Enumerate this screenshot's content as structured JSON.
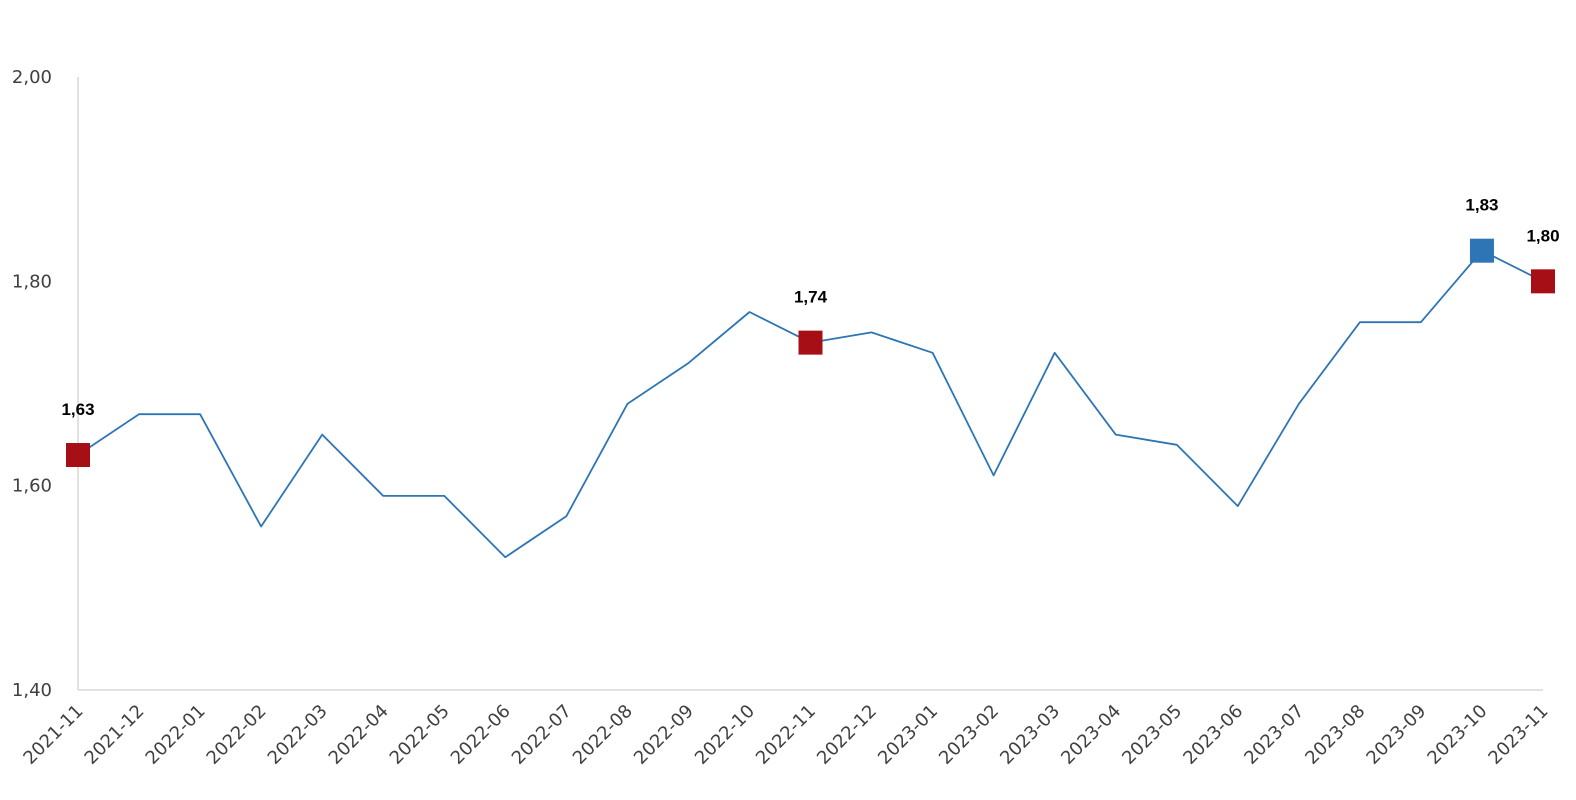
{
  "chart_data": {
    "type": "line",
    "categories": [
      "2021-11",
      "2021-12",
      "2022-01",
      "2022-02",
      "2022-03",
      "2022-04",
      "2022-05",
      "2022-06",
      "2022-07",
      "2022-08",
      "2022-09",
      "2022-10",
      "2022-11",
      "2022-12",
      "2023-01",
      "2023-02",
      "2023-03",
      "2023-04",
      "2023-05",
      "2023-06",
      "2023-07",
      "2023-08",
      "2023-09",
      "2023-10",
      "2023-11"
    ],
    "values": [
      1.63,
      1.67,
      1.67,
      1.56,
      1.65,
      1.59,
      1.59,
      1.53,
      1.57,
      1.68,
      1.72,
      1.77,
      1.74,
      1.75,
      1.73,
      1.61,
      1.73,
      1.65,
      1.64,
      1.58,
      1.68,
      1.76,
      1.76,
      1.83,
      1.8
    ],
    "ylim": [
      1.4,
      2.0
    ],
    "y_ticks": [
      {
        "value": 1.4,
        "label": "1,40"
      },
      {
        "value": 1.6,
        "label": "1,60"
      },
      {
        "value": 1.8,
        "label": "1,80"
      },
      {
        "value": 2.0,
        "label": "2,00"
      }
    ],
    "grid": false,
    "line_color": "#2e75b6",
    "highlighted_points": [
      {
        "index": 0,
        "label": "1,63",
        "color": "#a50f15"
      },
      {
        "index": 12,
        "label": "1,74",
        "color": "#a50f15"
      },
      {
        "index": 23,
        "label": "1,83",
        "color": "#2e75b6"
      },
      {
        "index": 24,
        "label": "1,80",
        "color": "#a50f15"
      }
    ]
  }
}
